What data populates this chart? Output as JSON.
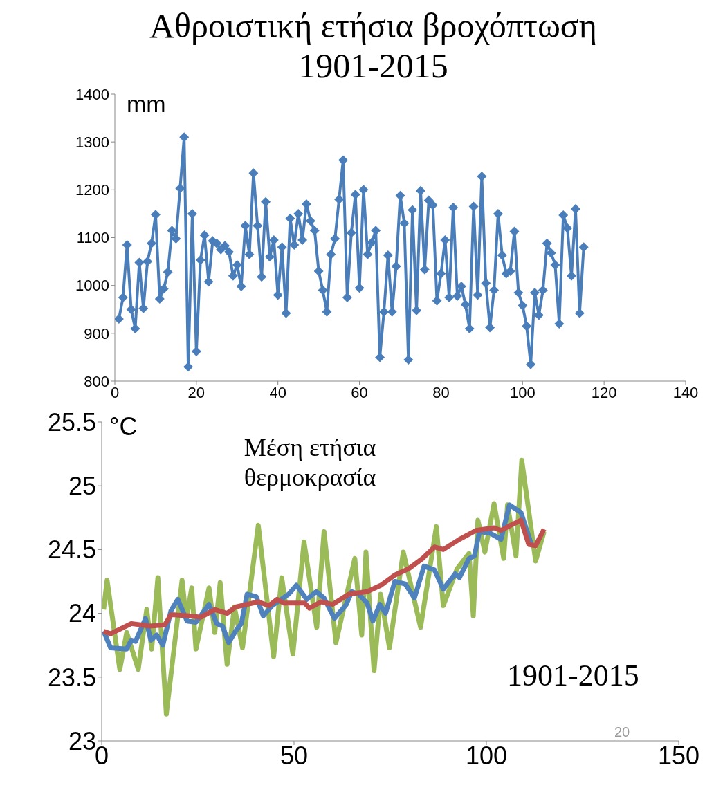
{
  "chart_data": [
    {
      "type": "line",
      "title": "Αθροιστική ετήσια βροχόπτωση 1901-2015",
      "ylabel": "mm",
      "marker": "diamond",
      "xlim": [
        0,
        140
      ],
      "xticks": [
        0,
        20,
        40,
        60,
        80,
        100,
        120,
        140
      ],
      "ylim": [
        800,
        1400
      ],
      "yticks": [
        800,
        900,
        1000,
        1100,
        1200,
        1300,
        1400
      ],
      "series": [
        {
          "color": "#4a7ebb",
          "x": [
            1,
            2,
            3,
            4,
            5,
            6,
            7,
            8,
            9,
            10,
            11,
            12,
            13,
            14,
            15,
            16,
            17,
            18,
            19,
            20,
            21,
            22,
            23,
            24,
            25,
            26,
            27,
            28,
            29,
            30,
            31,
            32,
            33,
            34,
            35,
            36,
            37,
            38,
            39,
            40,
            41,
            42,
            43,
            44,
            45,
            46,
            47,
            48,
            49,
            50,
            51,
            52,
            53,
            54,
            55,
            56,
            57,
            58,
            59,
            60,
            61,
            62,
            63,
            64,
            65,
            66,
            67,
            68,
            69,
            70,
            71,
            72,
            73,
            74,
            75,
            76,
            77,
            78,
            79,
            80,
            81,
            82,
            83,
            84,
            85,
            86,
            87,
            88,
            89,
            90,
            91,
            92,
            93,
            94,
            95,
            96,
            97,
            98,
            99,
            100,
            101,
            102,
            103,
            104,
            105,
            106,
            107,
            108,
            109,
            110,
            111,
            112,
            113,
            114,
            115
          ],
          "values": [
            930,
            975,
            1085,
            950,
            910,
            1048,
            952,
            1050,
            1088,
            1148,
            972,
            993,
            1028,
            1115,
            1098,
            1203,
            1310,
            830,
            1150,
            862,
            1053,
            1105,
            1008,
            1093,
            1088,
            1075,
            1083,
            1070,
            1020,
            1043,
            998,
            1125,
            1065,
            1235,
            1125,
            1018,
            1175,
            1060,
            1095,
            980,
            1080,
            942,
            1140,
            1085,
            1150,
            1095,
            1170,
            1135,
            1115,
            1030,
            990,
            945,
            1065,
            1098,
            1180,
            1262,
            975,
            1110,
            1190,
            995,
            1200,
            1065,
            1090,
            1115,
            850,
            945,
            1063,
            945,
            1040,
            1188,
            1130,
            845,
            1158,
            948,
            1198,
            1033,
            1178,
            1168,
            968,
            1025,
            1095,
            975,
            1163,
            978,
            998,
            960,
            910,
            1165,
            980,
            1228,
            1005,
            912,
            990,
            1150,
            1063,
            1025,
            1030,
            1113,
            985,
            958,
            915,
            835,
            985,
            938,
            990,
            1088,
            1068,
            1043,
            920,
            1147,
            1120,
            1020,
            1160,
            942,
            1080
          ]
        }
      ]
    },
    {
      "type": "line",
      "ylabel": "°C",
      "marker": "none",
      "xlim": [
        0,
        150
      ],
      "xticks": [
        0,
        50,
        100,
        150
      ],
      "ylim": [
        23,
        25.5
      ],
      "yticks": [
        23,
        23.5,
        24,
        24.5,
        25,
        25.5
      ],
      "annotations": [
        "Μέση ετήσια θερμοκρασία",
        "1901-2015",
        "20"
      ],
      "series": [
        {
          "color": "#9bbb59",
          "x": [
            0.5,
            1.4,
            4.7,
            6.5,
            9.5,
            11.7,
            13,
            14.6,
            16.8,
            20.9,
            22,
            23.4,
            24.5,
            27.9,
            29.4,
            30.8,
            32.6,
            34.5,
            36.6,
            40.7,
            44.7,
            46.8,
            49.7,
            52.6,
            55.9,
            57.8,
            60.9,
            65.8,
            67.6,
            68.7,
            70.8,
            72.5,
            74.8,
            78.4,
            82.9,
            87,
            88.8,
            92.4,
            95.5,
            96.6,
            97.8,
            99.6,
            102,
            104.5,
            105.5,
            107.7,
            109.2,
            112.8,
            115
          ],
          "values": [
            24.03,
            24.26,
            23.56,
            23.85,
            23.56,
            24.03,
            23.72,
            24.28,
            23.21,
            24.26,
            23.95,
            24.2,
            23.72,
            24.2,
            23.85,
            24.24,
            23.6,
            24.05,
            23.73,
            24.69,
            23.66,
            24.28,
            23.68,
            24.56,
            23.89,
            24.64,
            23.77,
            24.43,
            23.83,
            24.48,
            23.55,
            24.15,
            23.73,
            24.48,
            23.89,
            24.68,
            24.06,
            24.35,
            24.47,
            23.98,
            24.73,
            24.48,
            24.86,
            24.43,
            24.85,
            24.45,
            25.2,
            24.41,
            24.64
          ]
        },
        {
          "color": "#4f81bd",
          "x": [
            0.5,
            2.3,
            6.5,
            7.7,
            8.8,
            11.4,
            12.8,
            14.3,
            15.9,
            18,
            19.8,
            22.2,
            24.5,
            27.9,
            29.9,
            31.4,
            33,
            34.8,
            36.3,
            37.8,
            40.2,
            42,
            44.3,
            48.6,
            50.6,
            53.3,
            55.8,
            57.8,
            60.5,
            63.6,
            65,
            66.8,
            69,
            70.5,
            72.3,
            73.8,
            76.2,
            78.9,
            81.3,
            83.8,
            86.5,
            88.8,
            91.9,
            93,
            95.5,
            96.9,
            98.2,
            100.9,
            103.8,
            106,
            109,
            111.7
          ],
          "values": [
            23.86,
            23.73,
            23.72,
            23.79,
            23.78,
            23.96,
            23.79,
            23.83,
            23.75,
            24.02,
            24.11,
            23.94,
            23.93,
            24.07,
            23.92,
            23.9,
            23.77,
            23.86,
            23.92,
            24.15,
            24.13,
            23.98,
            24.06,
            24.15,
            24.22,
            24.11,
            24.17,
            24.12,
            23.96,
            24.07,
            24.17,
            24.15,
            24.08,
            23.94,
            24.07,
            24,
            24.25,
            24.23,
            24.12,
            24.37,
            24.34,
            24.19,
            24.31,
            24.28,
            24.43,
            24.45,
            24.64,
            24.63,
            24.58,
            24.85,
            24.79,
            24.54
          ]
        },
        {
          "color": "#c0504d",
          "x": [
            0.5,
            2.3,
            7.7,
            12.6,
            16.4,
            18,
            22.7,
            25.8,
            29.4,
            32.6,
            34.8,
            40.7,
            43.5,
            45.6,
            47.3,
            52.8,
            54,
            57,
            60,
            64.2,
            69,
            72.6,
            76.2,
            79.8,
            83.4,
            86.5,
            88.8,
            93,
            97.3,
            102,
            103.8,
            106.3,
            109,
            111,
            112.8,
            115
          ],
          "values": [
            23.86,
            23.84,
            23.92,
            23.9,
            23.91,
            23.99,
            23.98,
            23.97,
            24.03,
            24,
            24.05,
            24.09,
            24.06,
            24.11,
            24.08,
            24.08,
            24.04,
            24.09,
            24.07,
            24.15,
            24.17,
            24.22,
            24.3,
            24.35,
            24.43,
            24.52,
            24.5,
            24.58,
            24.65,
            24.67,
            24.65,
            24.69,
            24.73,
            24.54,
            24.53,
            24.66
          ]
        }
      ]
    }
  ]
}
